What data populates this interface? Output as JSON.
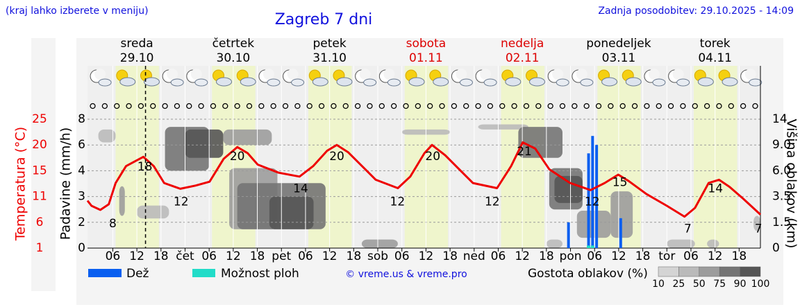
{
  "header": {
    "note": "(kraj lahko izberete v meniju)",
    "updated": "Zadnja posodobitev: 29.10.2025 - 14:09"
  },
  "chart_data": {
    "type": "meteogram",
    "title": "Zagreb 7 dni",
    "days": [
      {
        "name": "sreda",
        "date": "29.10",
        "color": "#000000"
      },
      {
        "name": "četrtek",
        "date": "30.10",
        "color": "#000000"
      },
      {
        "name": "petek",
        "date": "31.10",
        "color": "#000000"
      },
      {
        "name": "sobota",
        "date": "01.11",
        "color": "#dd0000"
      },
      {
        "name": "nedelja",
        "date": "02.11",
        "color": "#dd0000"
      },
      {
        "name": "ponedeljek",
        "date": "03.11",
        "color": "#000000"
      },
      {
        "name": "torek",
        "date": "04.11",
        "color": "#000000"
      }
    ],
    "xlim": [
      -0.3,
      167.3
    ],
    "xticks": [
      {
        "value": 6,
        "label": "06"
      },
      {
        "value": 12,
        "label": "12"
      },
      {
        "value": 18,
        "label": "18"
      },
      {
        "value": 24,
        "label": "čet"
      },
      {
        "value": 30,
        "label": "06"
      },
      {
        "value": 36,
        "label": "12"
      },
      {
        "value": 42,
        "label": "18"
      },
      {
        "value": 48,
        "label": "pet"
      },
      {
        "value": 54,
        "label": "06"
      },
      {
        "value": 60,
        "label": "12"
      },
      {
        "value": 66,
        "label": "18"
      },
      {
        "value": 72,
        "label": "sob"
      },
      {
        "value": 78,
        "label": "06"
      },
      {
        "value": 84,
        "label": "12"
      },
      {
        "value": 90,
        "label": "18"
      },
      {
        "value": 96,
        "label": "ned"
      },
      {
        "value": 102,
        "label": "06"
      },
      {
        "value": 108,
        "label": "12"
      },
      {
        "value": 114,
        "label": "18"
      },
      {
        "value": 120,
        "label": "pon"
      },
      {
        "value": 126,
        "label": "06"
      },
      {
        "value": 132,
        "label": "12"
      },
      {
        "value": 138,
        "label": "18"
      },
      {
        "value": 144,
        "label": "tor"
      },
      {
        "value": 150,
        "label": "06"
      },
      {
        "value": 156,
        "label": "12"
      },
      {
        "value": 162,
        "label": "18"
      }
    ],
    "now": 14.15,
    "daylight": [
      [
        6.7,
        17.5
      ],
      [
        30.7,
        41.5
      ],
      [
        54.7,
        65.5
      ],
      [
        78.7,
        89.5
      ],
      [
        102.7,
        113.5
      ],
      [
        126.7,
        137.5
      ],
      [
        150.7,
        161.5
      ]
    ],
    "temperature": {
      "label": "Temperatura (°C)",
      "color": "#ee0000",
      "ylim": [
        1,
        25
      ],
      "yticks": [
        1,
        6,
        11,
        15,
        20,
        25
      ],
      "x": [
        -0.3,
        0.7,
        2.9,
        5,
        6.7,
        9.3,
        13.6,
        16.2,
        18.8,
        22.8,
        26.6,
        30.1,
        33.6,
        37,
        39.6,
        42.1,
        47.3,
        52.5,
        55.9,
        59.4,
        61.8,
        64.6,
        71.5,
        77,
        80.1,
        83.6,
        85.5,
        88.8,
        95.7,
        101.7,
        105.2,
        108.1,
        111.2,
        114.7,
        119.9,
        125,
        128.5,
        131.9,
        134.5,
        138.9,
        144,
        148.4,
        151,
        154.4,
        157,
        159.6,
        163,
        167.3
      ],
      "values": [
        10.2,
        9.2,
        8.4,
        9.5,
        13.1,
        15.9,
        17.7,
        15.9,
        13.1,
        12.2,
        12.7,
        13.3,
        17.3,
        19.6,
        18.4,
        16.2,
        14.7,
        14.1,
        15.9,
        18.9,
        20,
        18.6,
        13.6,
        12.3,
        14.1,
        18.4,
        20,
        18,
        13.1,
        12.3,
        15.9,
        20.5,
        19.3,
        15.3,
        13.1,
        12,
        13.1,
        14.4,
        13.4,
        11.4,
        9.2,
        7.1,
        8.8,
        13.1,
        13.6,
        12.5,
        10.6,
        7.5
      ],
      "labels": {
        "x": [
          6,
          14,
          23,
          37,
          52.8,
          61.8,
          76.9,
          85.7,
          100.5,
          108.5,
          125.4,
          132.3,
          149.2,
          156.1,
          166.8
        ],
        "values": [
          8,
          18,
          12,
          20,
          14,
          20,
          12,
          20,
          12,
          21,
          12,
          15,
          7,
          14,
          7
        ]
      }
    },
    "precipitation": {
      "label": "Padavine (mm/h)",
      "ylim": [
        0,
        8
      ],
      "yticks": [
        0,
        2,
        3,
        4,
        6,
        8
      ],
      "series": [
        {
          "name": "Dež",
          "color": "#0a5ff0",
          "x": [
            119.5,
            124.5,
            125.5,
            126.5,
            132.5
          ],
          "values": [
            2,
            5.35,
            6.7,
            6,
            2.16
          ]
        },
        {
          "name": "Možnost ploh",
          "color": "#22dcc8",
          "x": [
            124.5,
            125.5
          ],
          "values": [
            0.2,
            0.2
          ]
        }
      ]
    },
    "clouds": {
      "label": "Višina oblakov (km)",
      "legend_title": "Gostota oblakov (%)",
      "ylim": [
        0,
        14
      ],
      "yticks": [
        0,
        1.5,
        3.5,
        {
          "value": 6,
          "label": "6.0"
        },
        {
          "value": 9,
          "label": "9.0"
        },
        14
      ],
      "scale": [
        10,
        25,
        50,
        75,
        90,
        100
      ],
      "colors": [
        "#d4d4d4",
        "#bababa",
        "#9c9c9c",
        "#747474",
        "#555555"
      ],
      "cells": [
        {
          "x": [
            2.4,
            6.7
          ],
          "y": [
            9.5,
            12
          ],
          "density": 25
        },
        {
          "x": [
            7.6,
            9
          ],
          "y": [
            2,
            4.5
          ],
          "density": 50
        },
        {
          "x": [
            12,
            20
          ],
          "y": [
            1.8,
            2.8
          ],
          "density": 25
        },
        {
          "x": [
            19,
            30
          ],
          "y": [
            6,
            12.5
          ],
          "density": 75
        },
        {
          "x": [
            24,
            33.5
          ],
          "y": [
            7.5,
            12
          ],
          "density": 90
        },
        {
          "x": [
            33.5,
            45.6
          ],
          "y": [
            9,
            12
          ],
          "density": 50
        },
        {
          "x": [
            35,
            47
          ],
          "y": [
            1.1,
            6.3
          ],
          "density": 50
        },
        {
          "x": [
            37,
            59
          ],
          "y": [
            1.1,
            4.8
          ],
          "density": 75
        },
        {
          "x": [
            45,
            56
          ],
          "y": [
            1.1,
            3.5
          ],
          "density": 90
        },
        {
          "x": [
            68,
            77
          ],
          "y": [
            0,
            0.5
          ],
          "density": 50
        },
        {
          "x": [
            78,
            90
          ],
          "y": [
            11,
            12
          ],
          "density": 25
        },
        {
          "x": [
            97,
            109.5
          ],
          "y": [
            12,
            13
          ],
          "density": 25
        },
        {
          "x": [
            107,
            118
          ],
          "y": [
            7.5,
            12.5
          ],
          "density": 75
        },
        {
          "x": [
            114.7,
            123
          ],
          "y": [
            2.5,
            6.3
          ],
          "density": 75
        },
        {
          "x": [
            116,
            123
          ],
          "y": [
            3,
            5.5
          ],
          "density": 90
        },
        {
          "x": [
            121.6,
            130
          ],
          "y": [
            0.6,
            2.4
          ],
          "density": 50
        },
        {
          "x": [
            130,
            135.5
          ],
          "y": [
            0.6,
            4
          ],
          "density": 50
        },
        {
          "x": [
            114,
            118
          ],
          "y": [
            0,
            0.5
          ],
          "density": 25
        },
        {
          "x": [
            144,
            151
          ],
          "y": [
            0,
            0.5
          ],
          "density": 25
        },
        {
          "x": [
            154,
            157
          ],
          "y": [
            0,
            0.5
          ],
          "density": 25
        },
        {
          "x": [
            165.6,
            167.3
          ],
          "y": [
            1,
            2
          ],
          "density": 25
        }
      ]
    },
    "credit": "© vreme.us & vreme.pro"
  }
}
